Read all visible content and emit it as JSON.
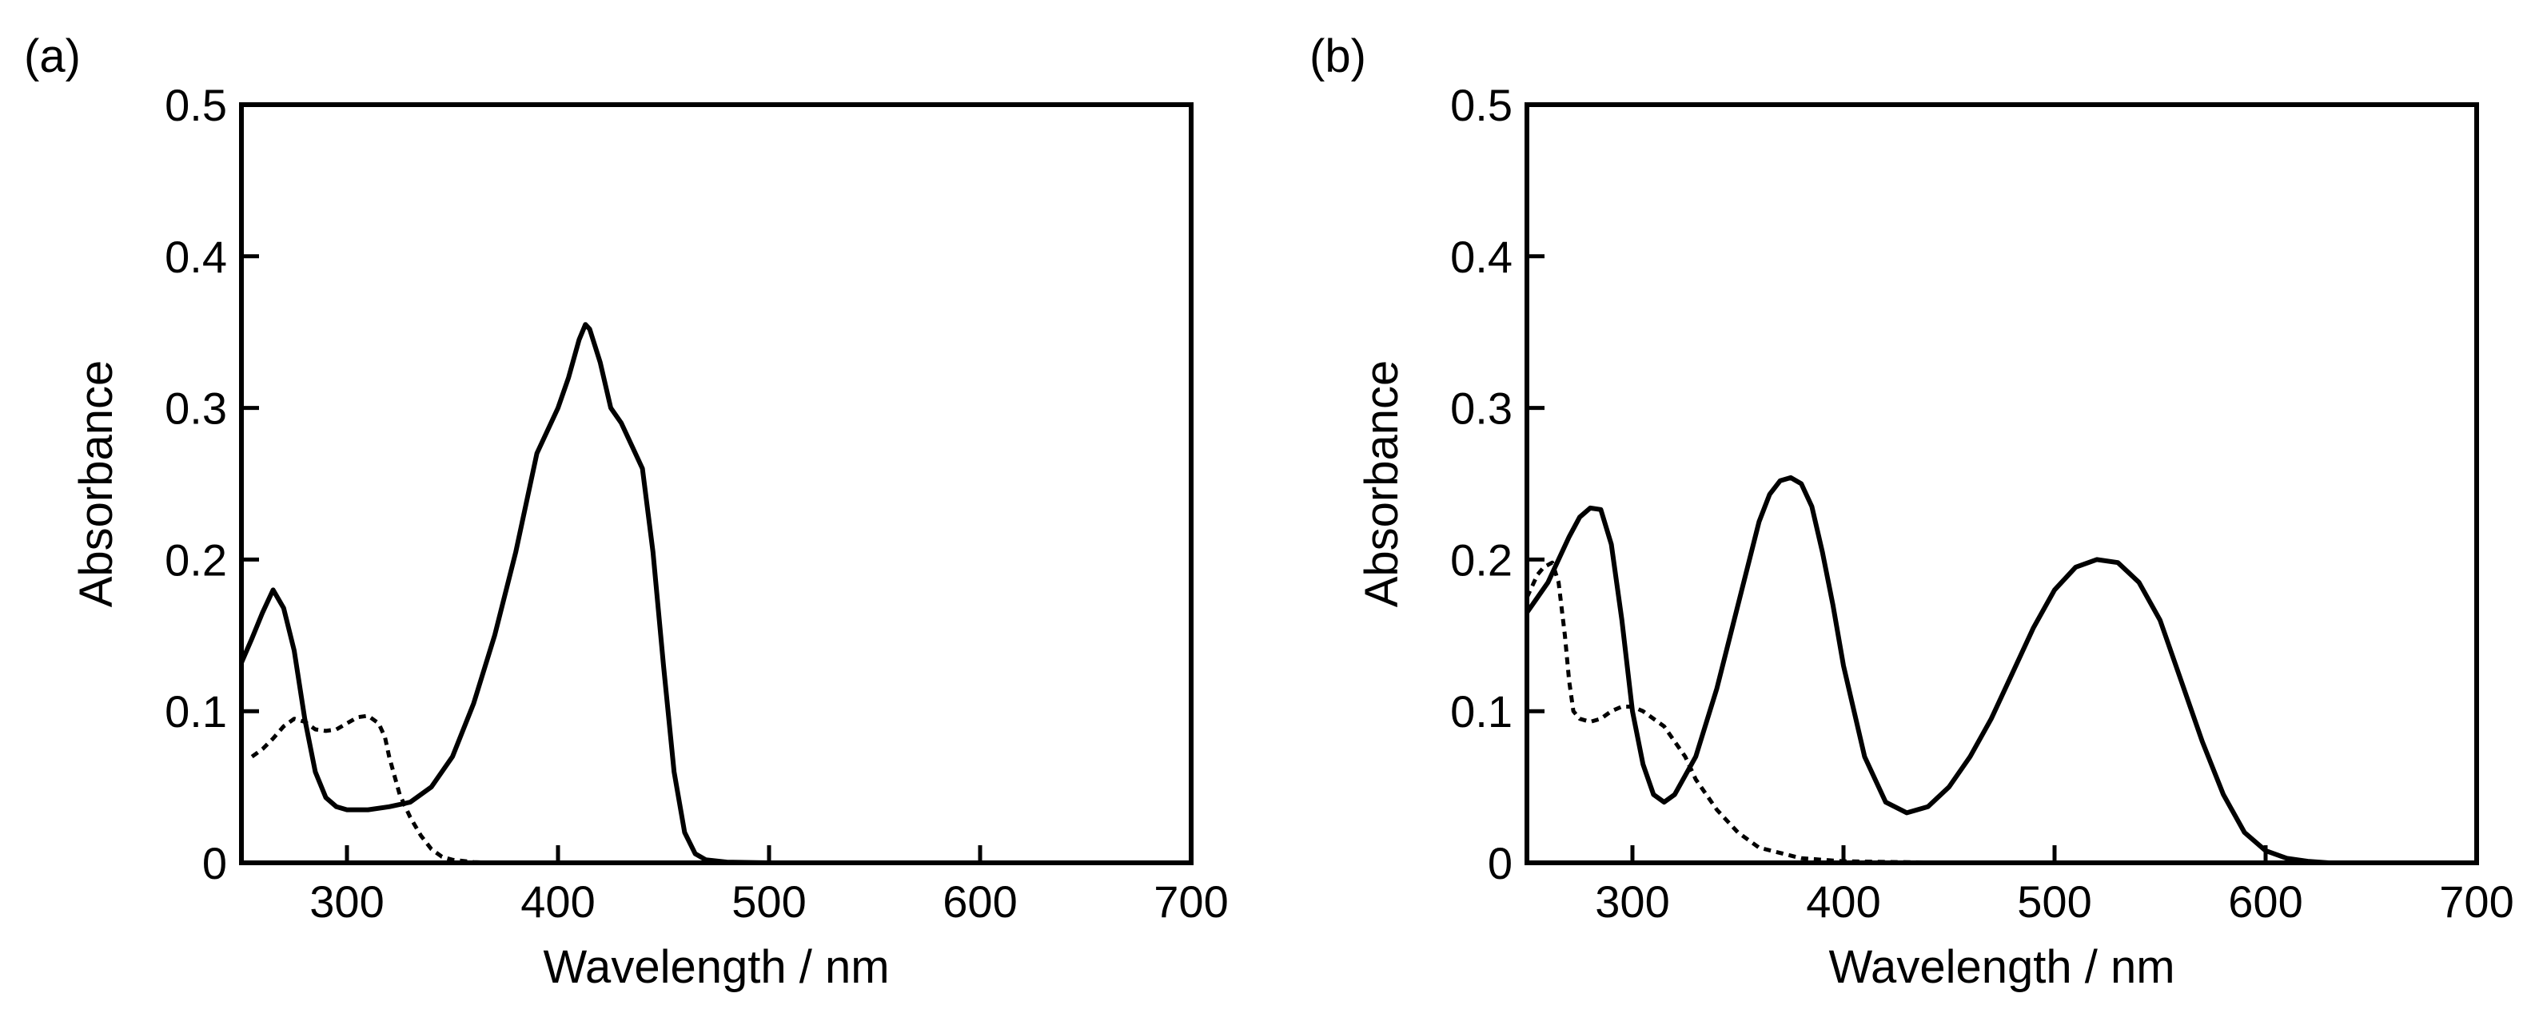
{
  "figure": {
    "panels": [
      "(a)",
      "(b)"
    ]
  },
  "colors": {
    "line": "#000000",
    "background": "#ffffff"
  },
  "chart_data": [
    {
      "type": "line",
      "panel_label": "(a)",
      "title": "",
      "xlabel": "Wavelength / nm",
      "ylabel": "Absorbance",
      "xlim": [
        250,
        700
      ],
      "ylim": [
        0,
        0.5
      ],
      "xticks": [
        300,
        400,
        500,
        600,
        700
      ],
      "yticks": [
        0,
        0.1,
        0.2,
        0.3,
        0.4,
        0.5
      ],
      "xtick_labels": [
        "300",
        "400",
        "500",
        "600",
        "700"
      ],
      "ytick_labels": [
        "0",
        "0.1",
        "0.2",
        "0.3",
        "0.4",
        "0.5"
      ],
      "grid": false,
      "series": [
        {
          "name": "solid",
          "style": "solid",
          "x": [
            250,
            255,
            260,
            265,
            270,
            275,
            280,
            285,
            290,
            295,
            300,
            310,
            320,
            330,
            340,
            350,
            360,
            370,
            380,
            390,
            400,
            405,
            410,
            413,
            415,
            420,
            425,
            430,
            435,
            440,
            445,
            450,
            455,
            460,
            465,
            470,
            480,
            500,
            550
          ],
          "values": [
            0.132,
            0.148,
            0.165,
            0.18,
            0.168,
            0.14,
            0.095,
            0.06,
            0.043,
            0.037,
            0.035,
            0.035,
            0.037,
            0.04,
            0.05,
            0.07,
            0.105,
            0.15,
            0.205,
            0.27,
            0.3,
            0.32,
            0.345,
            0.355,
            0.352,
            0.33,
            0.3,
            0.29,
            0.275,
            0.26,
            0.205,
            0.13,
            0.06,
            0.02,
            0.006,
            0.002,
            0.0005,
            0.0,
            0.0
          ]
        },
        {
          "name": "dotted",
          "style": "dotted",
          "x": [
            255,
            260,
            265,
            270,
            275,
            280,
            285,
            290,
            295,
            300,
            305,
            310,
            315,
            318,
            320,
            323,
            325,
            330,
            335,
            340,
            345,
            350,
            360,
            370,
            380
          ],
          "values": [
            0.07,
            0.075,
            0.082,
            0.09,
            0.095,
            0.093,
            0.088,
            0.087,
            0.088,
            0.092,
            0.096,
            0.097,
            0.092,
            0.083,
            0.07,
            0.055,
            0.045,
            0.03,
            0.018,
            0.009,
            0.004,
            0.002,
            0.0005,
            0.0,
            0.0
          ]
        }
      ]
    },
    {
      "type": "line",
      "panel_label": "(b)",
      "title": "",
      "xlabel": "Wavelength / nm",
      "ylabel": "Absorbance",
      "xlim": [
        250,
        700
      ],
      "ylim": [
        0,
        0.5
      ],
      "xticks": [
        300,
        400,
        500,
        600,
        700
      ],
      "yticks": [
        0,
        0.1,
        0.2,
        0.3,
        0.4,
        0.5
      ],
      "xtick_labels": [
        "300",
        "400",
        "500",
        "600",
        "700"
      ],
      "ytick_labels": [
        "0",
        "0.1",
        "0.2",
        "0.3",
        "0.4",
        "0.5"
      ],
      "grid": false,
      "series": [
        {
          "name": "solid",
          "style": "solid",
          "x": [
            250,
            255,
            260,
            265,
            270,
            275,
            280,
            285,
            290,
            295,
            300,
            305,
            310,
            315,
            320,
            330,
            340,
            350,
            360,
            365,
            370,
            375,
            380,
            385,
            390,
            395,
            400,
            410,
            420,
            430,
            440,
            450,
            460,
            470,
            480,
            490,
            500,
            510,
            520,
            530,
            540,
            550,
            560,
            570,
            580,
            590,
            600,
            610,
            620,
            630
          ],
          "values": [
            0.165,
            0.175,
            0.185,
            0.2,
            0.215,
            0.228,
            0.234,
            0.233,
            0.21,
            0.16,
            0.1,
            0.065,
            0.045,
            0.04,
            0.045,
            0.07,
            0.115,
            0.17,
            0.225,
            0.243,
            0.252,
            0.254,
            0.25,
            0.235,
            0.205,
            0.17,
            0.13,
            0.07,
            0.04,
            0.033,
            0.037,
            0.05,
            0.07,
            0.095,
            0.125,
            0.155,
            0.18,
            0.195,
            0.2,
            0.198,
            0.185,
            0.16,
            0.12,
            0.08,
            0.045,
            0.02,
            0.008,
            0.003,
            0.001,
            0.0
          ]
        },
        {
          "name": "dotted",
          "style": "dotted",
          "x": [
            250,
            255,
            258,
            262,
            265,
            268,
            270,
            272,
            275,
            280,
            285,
            290,
            295,
            300,
            305,
            310,
            315,
            320,
            325,
            330,
            340,
            350,
            360,
            380,
            400,
            450,
            500,
            550,
            600
          ],
          "values": [
            0.175,
            0.19,
            0.195,
            0.198,
            0.185,
            0.15,
            0.12,
            0.1,
            0.095,
            0.093,
            0.095,
            0.1,
            0.103,
            0.103,
            0.1,
            0.095,
            0.09,
            0.08,
            0.07,
            0.055,
            0.035,
            0.02,
            0.01,
            0.003,
            0.001,
            0.0,
            0.0,
            0.0,
            0.0
          ]
        }
      ]
    }
  ]
}
